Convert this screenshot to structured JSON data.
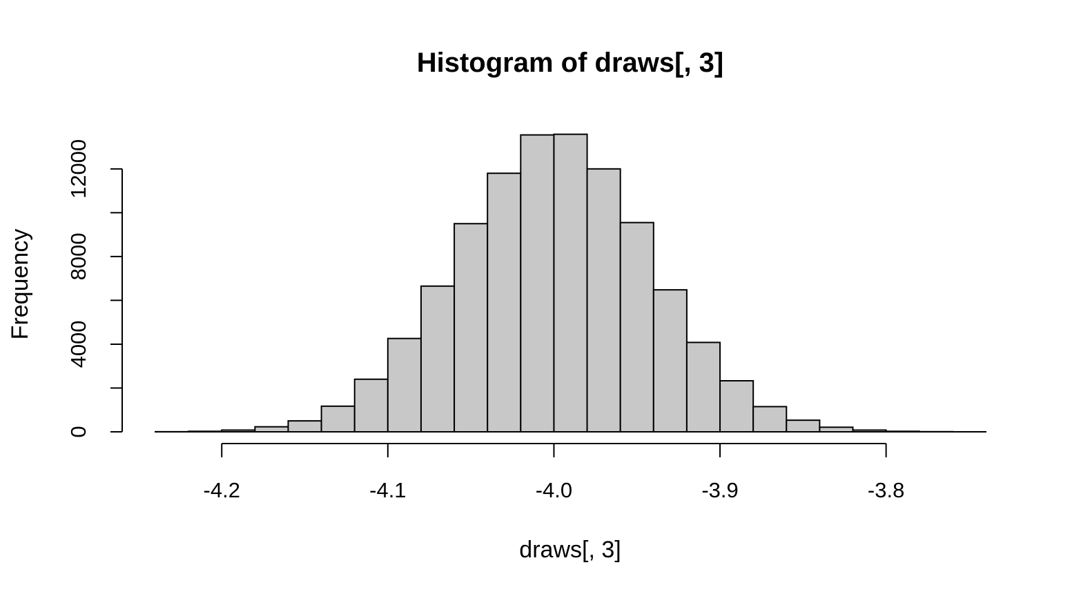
{
  "chart_data": {
    "type": "bar",
    "title": "Histogram of draws[, 3]",
    "xlabel": "draws[, 3]",
    "ylabel": "Frequency",
    "xlim": [
      -4.24,
      -3.74
    ],
    "ylim": [
      0,
      13600
    ],
    "bin_width": 0.02,
    "x_ticks": [
      -4.2,
      -4.1,
      -4.0,
      -3.9,
      -3.8
    ],
    "x_tick_labels": [
      "-4.2",
      "-4.1",
      "-4.0",
      "-3.9",
      "-3.8"
    ],
    "y_ticks": [
      0,
      2000,
      4000,
      6000,
      8000,
      10000,
      12000
    ],
    "y_tick_labels": [
      "0",
      "4000",
      "8000",
      "12000"
    ],
    "y_tick_labels_at": [
      0,
      4000,
      8000,
      12000
    ],
    "bin_starts": [
      -4.24,
      -4.22,
      -4.2,
      -4.18,
      -4.16,
      -4.14,
      -4.12,
      -4.1,
      -4.08,
      -4.06,
      -4.04,
      -4.02,
      -4.0,
      -3.98,
      -3.96,
      -3.94,
      -3.92,
      -3.9,
      -3.88,
      -3.86,
      -3.84,
      -3.82,
      -3.8,
      -3.78,
      -3.76
    ],
    "values": [
      5,
      25,
      80,
      230,
      500,
      1170,
      2400,
      4260,
      6650,
      9500,
      11800,
      13550,
      13580,
      12000,
      9550,
      6480,
      4080,
      2330,
      1150,
      530,
      210,
      80,
      25,
      8,
      2
    ],
    "grid": false,
    "legend": "none"
  }
}
